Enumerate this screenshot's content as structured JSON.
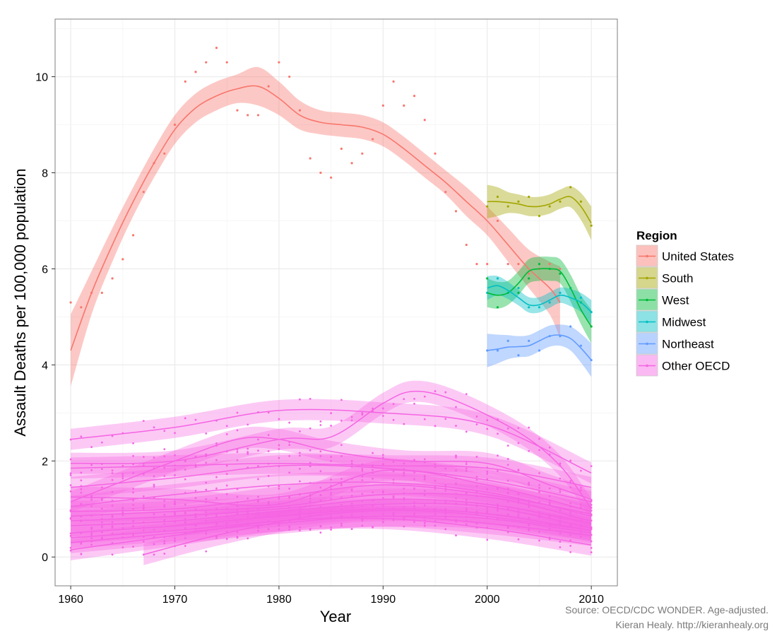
{
  "chart_data": {
    "type": "scatter",
    "xlabel": "Year",
    "ylabel": "Assault Deaths per 100,000 population",
    "xlim": [
      1958.5,
      2012.5
    ],
    "ylim": [
      -0.6,
      11.2
    ],
    "x_ticks": [
      "1960",
      "1970",
      "1980",
      "1990",
      "2000",
      "2010"
    ],
    "y_ticks": [
      "0",
      "2",
      "4",
      "6",
      "8",
      "10"
    ],
    "grid": true,
    "legend_title": "Region",
    "legend_position": "right",
    "caption": [
      "Source: OECD/CDC WONDER. Age-adjusted.",
      "Kieran Healy. http://kieranhealy.org"
    ],
    "smoother": "loess with confidence band",
    "series": [
      {
        "name": "United States",
        "color": "#f8766d",
        "points": [
          [
            1960,
            5.3
          ],
          [
            1961,
            5.2
          ],
          [
            1962,
            5.5
          ],
          [
            1963,
            5.5
          ],
          [
            1964,
            5.8
          ],
          [
            1965,
            6.2
          ],
          [
            1966,
            6.7
          ],
          [
            1967,
            7.6
          ],
          [
            1968,
            8.2
          ],
          [
            1969,
            8.4
          ],
          [
            1970,
            9.0
          ],
          [
            1971,
            9.9
          ],
          [
            1972,
            10.1
          ],
          [
            1973,
            10.3
          ],
          [
            1974,
            10.6
          ],
          [
            1975,
            10.3
          ],
          [
            1976,
            9.3
          ],
          [
            1977,
            9.2
          ],
          [
            1978,
            9.2
          ],
          [
            1979,
            9.8
          ],
          [
            1980,
            10.3
          ],
          [
            1981,
            10.0
          ],
          [
            1982,
            9.3
          ],
          [
            1983,
            8.3
          ],
          [
            1984,
            8.0
          ],
          [
            1985,
            7.9
          ],
          [
            1986,
            8.5
          ],
          [
            1987,
            8.2
          ],
          [
            1988,
            8.4
          ],
          [
            1989,
            8.7
          ],
          [
            1990,
            9.4
          ],
          [
            1991,
            9.9
          ],
          [
            1992,
            9.4
          ],
          [
            1993,
            9.6
          ],
          [
            1994,
            9.1
          ],
          [
            1995,
            8.4
          ],
          [
            1996,
            7.6
          ],
          [
            1997,
            7.2
          ],
          [
            1998,
            6.5
          ],
          [
            1999,
            6.1
          ],
          [
            2000,
            6.1
          ],
          [
            2001,
            7.0
          ],
          [
            2002,
            6.1
          ],
          [
            2003,
            6.1
          ],
          [
            2004,
            5.9
          ],
          [
            2005,
            6.0
          ],
          [
            2006,
            6.1
          ],
          [
            2007,
            6.0
          ]
        ],
        "smooth": [
          [
            1960,
            4.3
          ],
          [
            1962,
            5.5
          ],
          [
            1964,
            6.5
          ],
          [
            1966,
            7.4
          ],
          [
            1968,
            8.2
          ],
          [
            1970,
            8.9
          ],
          [
            1972,
            9.35
          ],
          [
            1974,
            9.6
          ],
          [
            1976,
            9.75
          ],
          [
            1978,
            9.8
          ],
          [
            1980,
            9.55
          ],
          [
            1982,
            9.2
          ],
          [
            1984,
            9.05
          ],
          [
            1986,
            9.0
          ],
          [
            1988,
            8.95
          ],
          [
            1990,
            8.8
          ],
          [
            1992,
            8.5
          ],
          [
            1994,
            8.15
          ],
          [
            1996,
            7.8
          ],
          [
            1998,
            7.4
          ],
          [
            2000,
            7.0
          ],
          [
            2002,
            6.5
          ],
          [
            2004,
            6.0
          ],
          [
            2006,
            5.6
          ],
          [
            2007,
            5.3
          ]
        ],
        "band": [
          0.75,
          0.45,
          0.35,
          0.3,
          0.3,
          0.3,
          0.3,
          0.3,
          0.3,
          0.4,
          0.35,
          0.3,
          0.25,
          0.25,
          0.25,
          0.25,
          0.25,
          0.25,
          0.25,
          0.3,
          0.3,
          0.35,
          0.4,
          0.55,
          0.75
        ]
      },
      {
        "name": "South",
        "color": "#a3a500",
        "points": [
          [
            2000,
            7.3
          ],
          [
            2001,
            7.5
          ],
          [
            2002,
            7.3
          ],
          [
            2003,
            7.4
          ],
          [
            2004,
            7.5
          ],
          [
            2005,
            7.1
          ],
          [
            2006,
            7.3
          ],
          [
            2007,
            7.4
          ],
          [
            2008,
            7.7
          ],
          [
            2009,
            7.4
          ],
          [
            2010,
            6.9
          ]
        ],
        "smooth": [
          [
            2000,
            7.4
          ],
          [
            2001,
            7.4
          ],
          [
            2002,
            7.38
          ],
          [
            2003,
            7.35
          ],
          [
            2004,
            7.3
          ],
          [
            2005,
            7.3
          ],
          [
            2006,
            7.35
          ],
          [
            2007,
            7.45
          ],
          [
            2008,
            7.5
          ],
          [
            2009,
            7.3
          ],
          [
            2010,
            6.95
          ]
        ],
        "band": [
          0.35,
          0.3,
          0.22,
          0.2,
          0.2,
          0.2,
          0.2,
          0.2,
          0.22,
          0.28,
          0.35
        ]
      },
      {
        "name": "West",
        "color": "#00ba38",
        "points": [
          [
            2000,
            5.8
          ],
          [
            2001,
            5.2
          ],
          [
            2002,
            5.5
          ],
          [
            2003,
            5.5
          ],
          [
            2004,
            5.8
          ],
          [
            2005,
            6.1
          ],
          [
            2006,
            6.0
          ],
          [
            2007,
            5.9
          ],
          [
            2008,
            5.6
          ],
          [
            2009,
            5.3
          ],
          [
            2010,
            4.8
          ]
        ],
        "smooth": [
          [
            2000,
            5.5
          ],
          [
            2001,
            5.45
          ],
          [
            2002,
            5.5
          ],
          [
            2003,
            5.7
          ],
          [
            2004,
            5.95
          ],
          [
            2005,
            6.0
          ],
          [
            2006,
            6.0
          ],
          [
            2007,
            5.95
          ],
          [
            2008,
            5.6
          ],
          [
            2009,
            5.15
          ],
          [
            2010,
            4.8
          ]
        ],
        "band": [
          0.3,
          0.28,
          0.25,
          0.25,
          0.25,
          0.25,
          0.25,
          0.25,
          0.28,
          0.3,
          0.35
        ]
      },
      {
        "name": "Midwest",
        "color": "#00bfc4",
        "points": [
          [
            2000,
            5.5
          ],
          [
            2001,
            5.8
          ],
          [
            2002,
            5.5
          ],
          [
            2003,
            5.6
          ],
          [
            2004,
            5.2
          ],
          [
            2005,
            5.2
          ],
          [
            2006,
            5.3
          ],
          [
            2007,
            5.5
          ],
          [
            2008,
            5.6
          ],
          [
            2009,
            5.4
          ],
          [
            2010,
            5.1
          ]
        ],
        "smooth": [
          [
            2000,
            5.6
          ],
          [
            2001,
            5.65
          ],
          [
            2002,
            5.55
          ],
          [
            2003,
            5.4
          ],
          [
            2004,
            5.25
          ],
          [
            2005,
            5.25
          ],
          [
            2006,
            5.35
          ],
          [
            2007,
            5.45
          ],
          [
            2008,
            5.4
          ],
          [
            2009,
            5.3
          ],
          [
            2010,
            5.1
          ]
        ],
        "band": [
          0.25,
          0.2,
          0.18,
          0.16,
          0.16,
          0.16,
          0.16,
          0.16,
          0.18,
          0.2,
          0.25
        ]
      },
      {
        "name": "Northeast",
        "color": "#619cff",
        "points": [
          [
            2000,
            4.3
          ],
          [
            2001,
            4.3
          ],
          [
            2002,
            4.5
          ],
          [
            2003,
            4.2
          ],
          [
            2004,
            4.5
          ],
          [
            2005,
            4.3
          ],
          [
            2006,
            4.6
          ],
          [
            2007,
            4.6
          ],
          [
            2008,
            4.8
          ],
          [
            2009,
            4.4
          ],
          [
            2010,
            4.1
          ]
        ],
        "smooth": [
          [
            2000,
            4.3
          ],
          [
            2001,
            4.33
          ],
          [
            2002,
            4.37
          ],
          [
            2003,
            4.38
          ],
          [
            2004,
            4.4
          ],
          [
            2005,
            4.5
          ],
          [
            2006,
            4.6
          ],
          [
            2007,
            4.62
          ],
          [
            2008,
            4.55
          ],
          [
            2009,
            4.35
          ],
          [
            2010,
            4.1
          ]
        ],
        "band": [
          0.35,
          0.3,
          0.25,
          0.22,
          0.22,
          0.22,
          0.22,
          0.22,
          0.25,
          0.3,
          0.35
        ]
      },
      {
        "name": "Other OECD",
        "color": "#f564e3",
        "points_note": "cloud of annual country observations, values roughly 0-4",
        "smooth_lines": [
          [
            [
              1960,
              2.45
            ],
            [
              1970,
              2.7
            ],
            [
              1980,
              3.05
            ],
            [
              1990,
              3.0
            ],
            [
              2000,
              2.75
            ],
            [
              2010,
              1.75
            ]
          ],
          [
            [
              1960,
              1.95
            ],
            [
              1970,
              2.0
            ],
            [
              1980,
              2.45
            ],
            [
              1985,
              2.5
            ],
            [
              1990,
              3.2
            ],
            [
              1993,
              3.45
            ],
            [
              1997,
              3.25
            ],
            [
              2003,
              2.6
            ],
            [
              2007,
              1.9
            ],
            [
              2010,
              1.0
            ]
          ],
          [
            [
              1960,
              1.15
            ],
            [
              1970,
              2.0
            ],
            [
              1976,
              2.45
            ],
            [
              1980,
              2.45
            ],
            [
              1985,
              2.2
            ],
            [
              1992,
              2.0
            ],
            [
              2000,
              1.95
            ],
            [
              2006,
              1.5
            ],
            [
              2010,
              1.2
            ]
          ],
          [
            [
              1960,
              1.85
            ],
            [
              1970,
              1.9
            ],
            [
              1980,
              1.95
            ],
            [
              1990,
              1.9
            ],
            [
              2000,
              1.85
            ],
            [
              2010,
              1.45
            ]
          ],
          [
            [
              1960,
              1.45
            ],
            [
              1970,
              1.65
            ],
            [
              1980,
              1.9
            ],
            [
              1990,
              1.85
            ],
            [
              2000,
              1.6
            ],
            [
              2010,
              1.15
            ]
          ],
          [
            [
              1960,
              1.25
            ],
            [
              1970,
              1.2
            ],
            [
              1980,
              1.1
            ],
            [
              1990,
              1.8
            ],
            [
              2000,
              1.5
            ],
            [
              2010,
              0.95
            ]
          ],
          [
            [
              1960,
              1.05
            ],
            [
              1970,
              1.3
            ],
            [
              1980,
              1.5
            ],
            [
              1990,
              1.55
            ],
            [
              2000,
              1.35
            ],
            [
              2010,
              0.85
            ]
          ],
          [
            [
              1960,
              0.95
            ],
            [
              1970,
              1.0
            ],
            [
              1980,
              1.25
            ],
            [
              1990,
              1.5
            ],
            [
              2000,
              1.3
            ],
            [
              2010,
              0.9
            ]
          ],
          [
            [
              1960,
              0.85
            ],
            [
              1970,
              0.95
            ],
            [
              1980,
              1.05
            ],
            [
              1990,
              1.3
            ],
            [
              2000,
              1.25
            ],
            [
              2010,
              0.75
            ]
          ],
          [
            [
              1960,
              0.75
            ],
            [
              1970,
              0.85
            ],
            [
              1980,
              1.0
            ],
            [
              1990,
              1.2
            ],
            [
              2000,
              1.1
            ],
            [
              2010,
              0.7
            ]
          ],
          [
            [
              1960,
              0.65
            ],
            [
              1970,
              0.75
            ],
            [
              1980,
              0.95
            ],
            [
              1990,
              1.1
            ],
            [
              2000,
              1.05
            ],
            [
              2010,
              0.6
            ]
          ],
          [
            [
              1960,
              0.5
            ],
            [
              1970,
              0.65
            ],
            [
              1980,
              0.85
            ],
            [
              1990,
              1.0
            ],
            [
              2000,
              0.9
            ],
            [
              2010,
              0.55
            ]
          ],
          [
            [
              1960,
              0.4
            ],
            [
              1970,
              0.55
            ],
            [
              1980,
              0.75
            ],
            [
              1990,
              0.85
            ],
            [
              2000,
              0.8
            ],
            [
              2010,
              0.5
            ]
          ],
          [
            [
              1960,
              0.3
            ],
            [
              1970,
              0.5
            ],
            [
              1980,
              0.7
            ],
            [
              1990,
              0.85
            ],
            [
              2000,
              0.7
            ],
            [
              2010,
              0.45
            ]
          ],
          [
            [
              1960,
              0.15
            ],
            [
              1970,
              0.45
            ],
            [
              1980,
              0.75
            ],
            [
              1990,
              0.8
            ],
            [
              2000,
              0.6
            ],
            [
              2010,
              0.25
            ]
          ],
          [
            [
              1967,
              0.05
            ],
            [
              1975,
              0.5
            ],
            [
              1985,
              0.9
            ],
            [
              1995,
              0.95
            ],
            [
              2005,
              0.7
            ],
            [
              2010,
              0.55
            ]
          ]
        ]
      }
    ]
  }
}
